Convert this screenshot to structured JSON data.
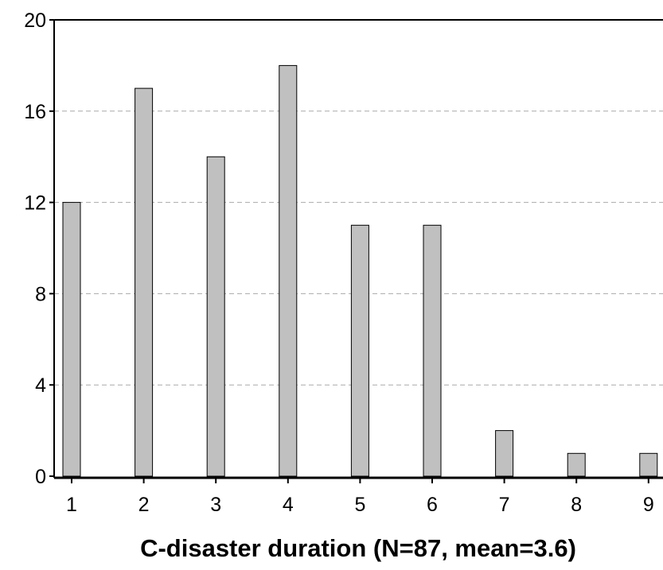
{
  "chart_data": {
    "type": "bar",
    "title": "",
    "xlabel": "C-disaster duration (N=87, mean=3.6)",
    "ylabel": "",
    "categories": [
      "1",
      "2",
      "3",
      "4",
      "5",
      "6",
      "7",
      "8",
      "9"
    ],
    "values": [
      12,
      17,
      14,
      18,
      11,
      11,
      2,
      1,
      1
    ],
    "ylim": [
      0,
      20
    ],
    "yticks": [
      "0",
      "4",
      "8",
      "12",
      "16",
      "20"
    ],
    "grid": "horizontal dashed",
    "legend": "none",
    "colors": {
      "bar_fill": "#c0c0c0",
      "bar_stroke": "#000000",
      "grid": "#aaaaaa",
      "axis": "#000000"
    }
  }
}
